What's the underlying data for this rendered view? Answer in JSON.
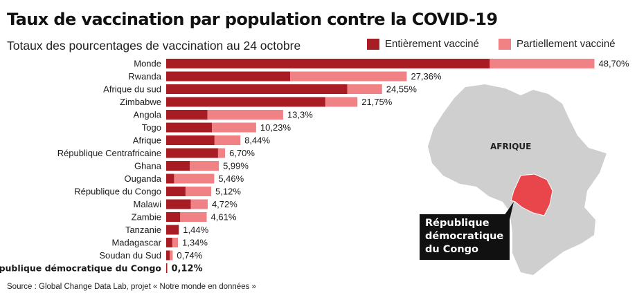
{
  "header": {
    "title": "Taux de vaccination par population contre la COVID-19",
    "subtitle": "Totaux des pourcentages de vaccination au 24 octobre"
  },
  "legend": {
    "full_label": "Entièrement vacciné",
    "partial_label": "Partiellement vacciné"
  },
  "colors": {
    "full": "#a81d24",
    "partial": "#f08285",
    "map_land": "#cfcfcf",
    "map_highlight": "#e8464b"
  },
  "map": {
    "region_label": "AFRIQUE",
    "callout_lines": [
      "République",
      "démocratique",
      "du Congo"
    ]
  },
  "source": "Source : Global Change Data Lab, projet « Notre monde en données »",
  "chart_data": {
    "type": "bar",
    "orientation": "horizontal",
    "stacked": true,
    "title": "Taux de vaccination par population contre la COVID-19",
    "subtitle": "Totaux des pourcentages de vaccination au 24 octobre",
    "categories": [
      "Monde",
      "Rwanda",
      "Afrique du sud",
      "Zimbabwe",
      "Angola",
      "Togo",
      "Afrique",
      "République Centrafricaine",
      "Ghana",
      "Ouganda",
      "République du Congo",
      "Malawi",
      "Zambie",
      "Tanzanie",
      "Madagascar",
      "Soudan du Sud",
      "République démocratique du Congo"
    ],
    "series": [
      {
        "name": "Entièrement vacciné",
        "values": [
          36.8,
          14.1,
          20.6,
          18.1,
          4.7,
          5.2,
          5.5,
          5.9,
          2.7,
          0.9,
          2.2,
          2.8,
          1.6,
          1.44,
          0.7,
          0.4,
          0.12
        ]
      },
      {
        "name": "Partiellement vacciné",
        "values": [
          11.9,
          13.26,
          3.95,
          3.65,
          8.6,
          5.03,
          2.94,
          0.8,
          3.29,
          4.56,
          2.92,
          1.92,
          3.01,
          0,
          0.64,
          0.34,
          0
        ]
      }
    ],
    "totals_labels": [
      "48,70%",
      "27,36%",
      "24,55%",
      "21,75%",
      "13,3%",
      "10,23%",
      "8,44%",
      "6,70%",
      "5,99%",
      "5,46%",
      "5,12%",
      "4,72%",
      "4,61%",
      "1,44%",
      "1,34%",
      "0,74%",
      "0,12%"
    ],
    "highlight_category": "République démocratique du Congo",
    "xlim": [
      0,
      50
    ],
    "grid": false,
    "legend_position": "top-right"
  }
}
